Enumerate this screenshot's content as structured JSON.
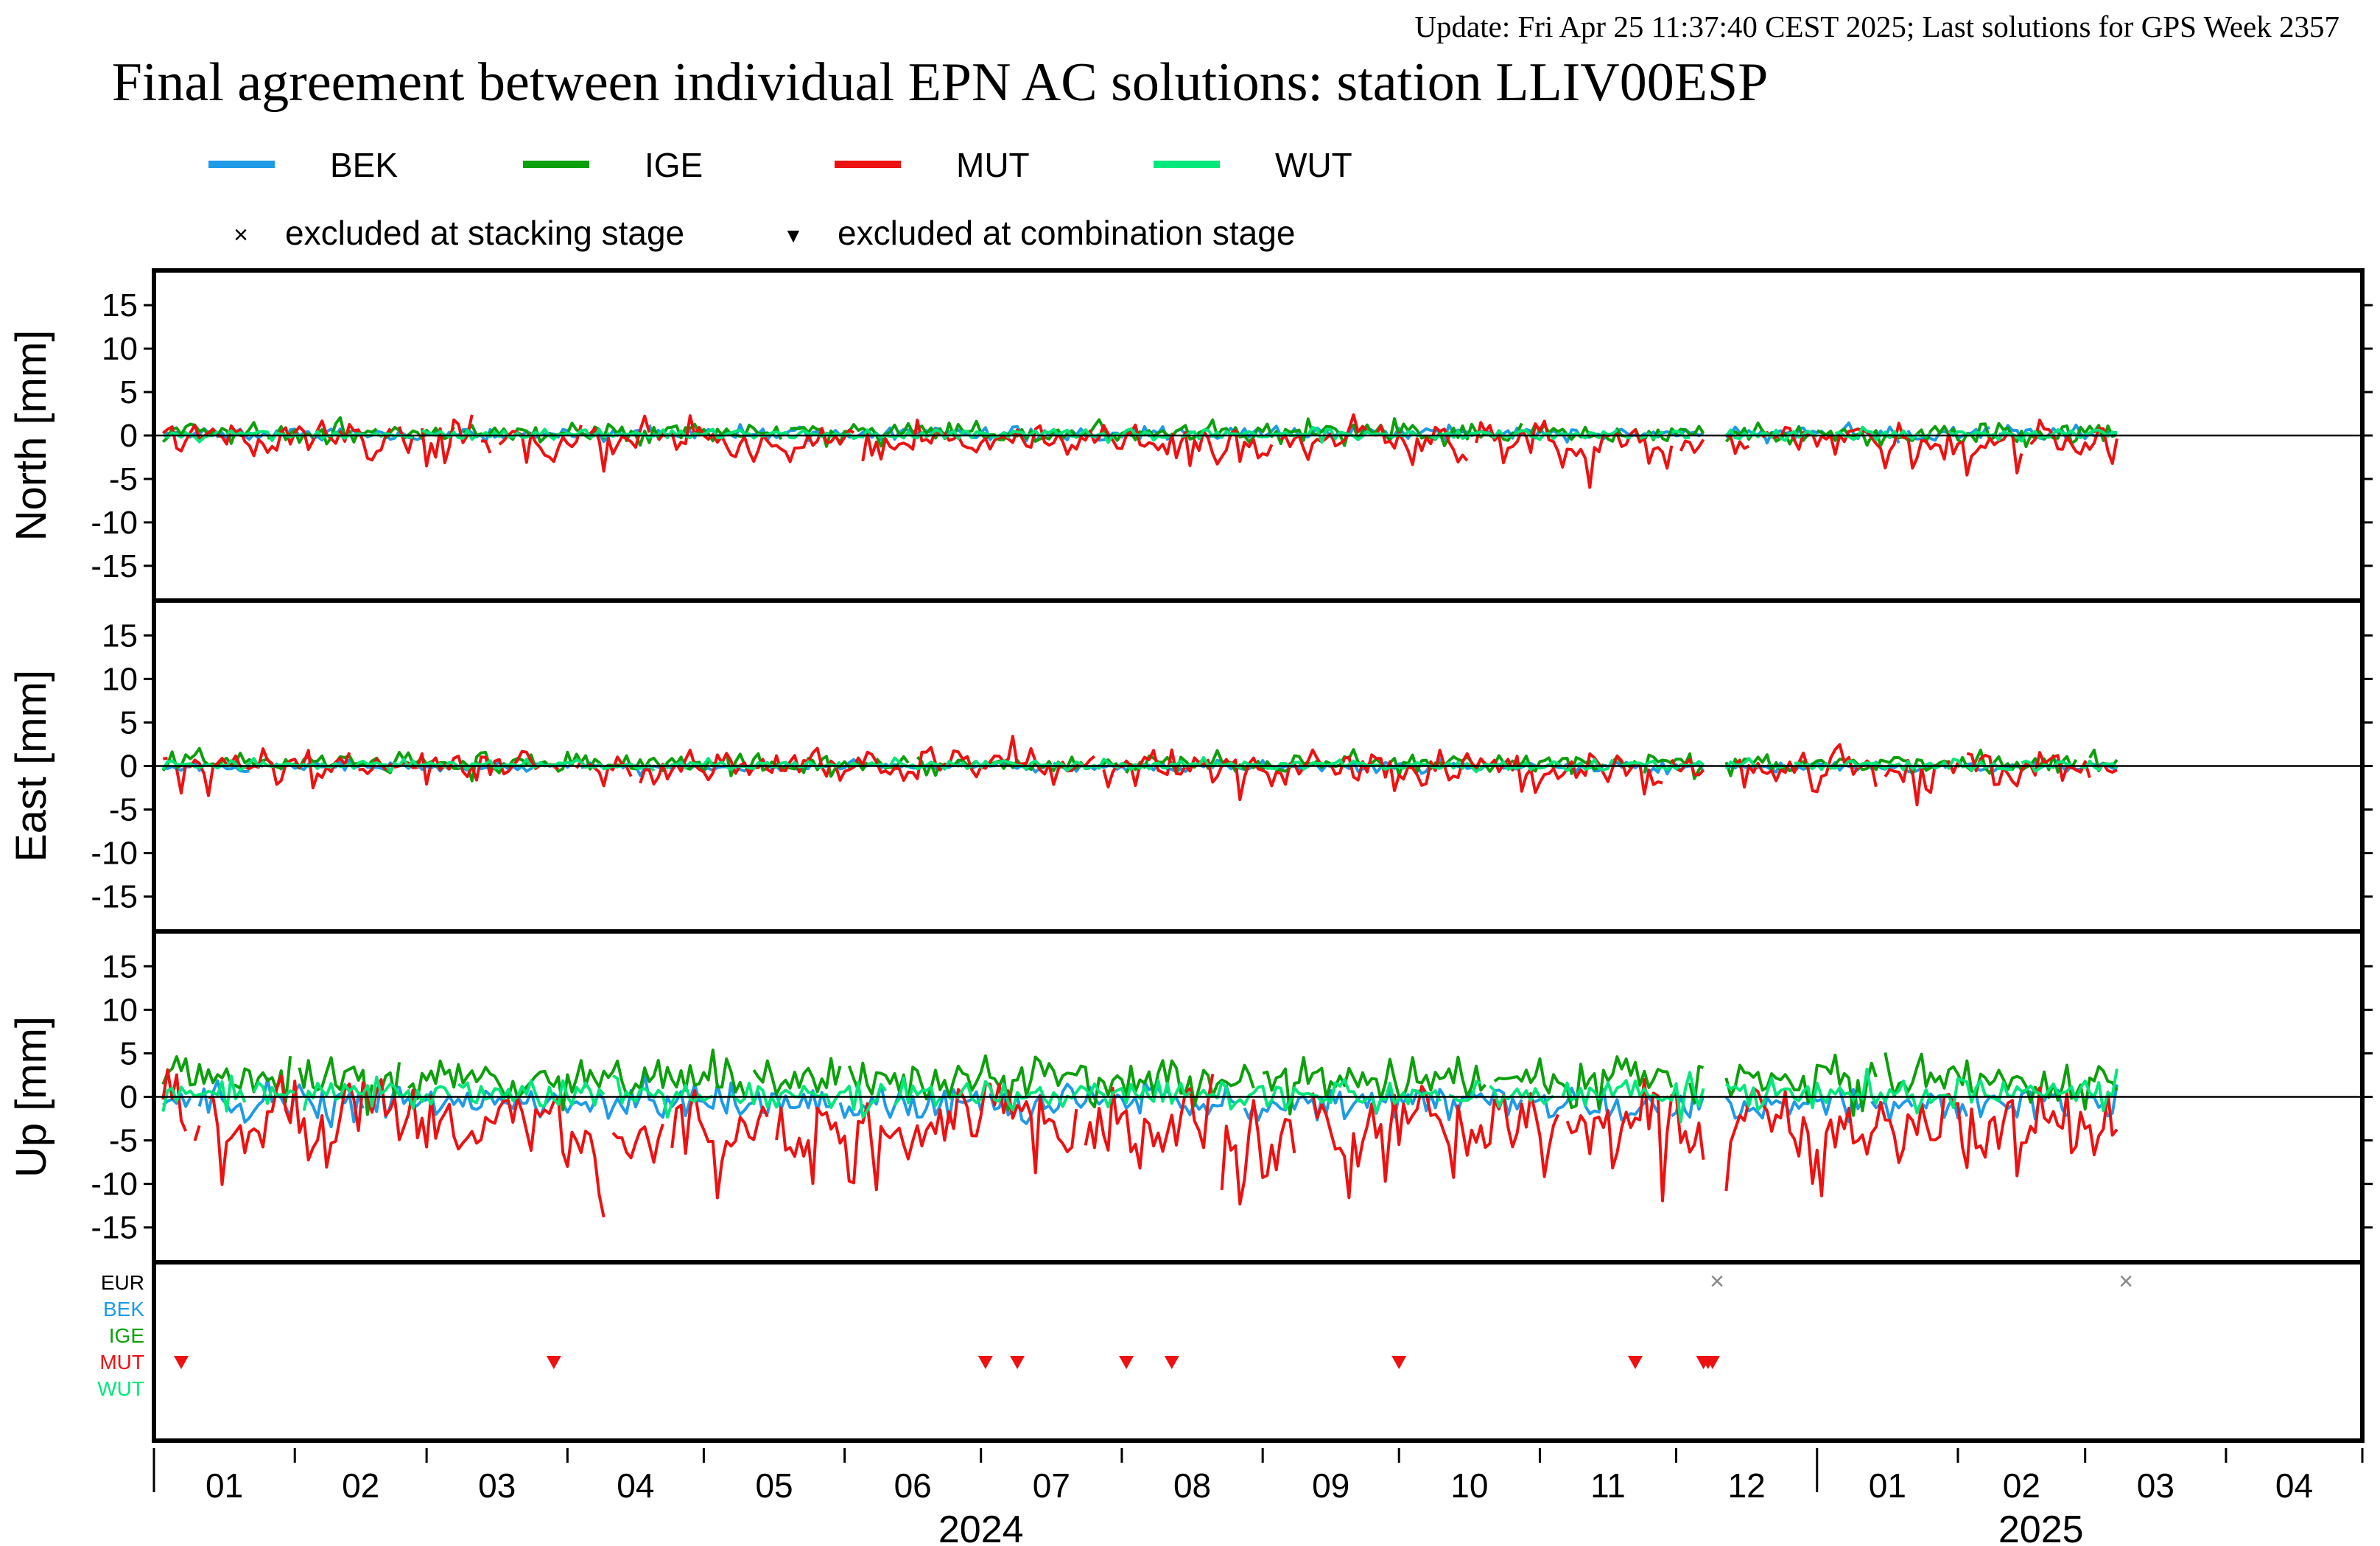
{
  "header": {
    "update_text": "Update: Fri Apr 25 11:37:40 CEST 2025; Last solutions for GPS Week 2357",
    "title": "Final agreement between individual EPN AC solutions: station LLIV00ESP"
  },
  "colors": {
    "BEK": "#1e9be6",
    "IGE": "#0ca00c",
    "MUT": "#ee1111",
    "WUT": "#00e87a",
    "EUR": "#000000",
    "update_text": "#8b1a1a",
    "frame": "#000000"
  },
  "legend": {
    "series": [
      "BEK",
      "IGE",
      "MUT",
      "WUT"
    ],
    "markers": [
      {
        "symbol": "×",
        "label": "excluded at stacking stage"
      },
      {
        "symbol": "▼",
        "label": "excluded at combination stage"
      }
    ]
  },
  "chart_data": {
    "type": "line",
    "x_unit": "month",
    "x_range": [
      "2024-01-01",
      "2025-04-30"
    ],
    "panels": [
      {
        "ylabel": "North [mm]",
        "ylim": [
          -19,
          19
        ],
        "yticks": [
          15,
          10,
          5,
          0,
          -5,
          -10,
          -15
        ],
        "typical_amplitude_mm": {
          "BEK": 0.4,
          "IGE": 0.6,
          "MUT": 1.5,
          "WUT": 0.3
        },
        "series_offset_mm": {
          "BEK": 0.2,
          "IGE": 0.3,
          "MUT": -0.5,
          "WUT": 0.1
        },
        "annotated_extremes_mm": {
          "MUT_max": 3.8,
          "MUT_min": -4.3
        }
      },
      {
        "ylabel": "East [mm]",
        "ylim": [
          -19,
          19
        ],
        "yticks": [
          15,
          10,
          5,
          0,
          -5,
          -10,
          -15
        ],
        "typical_amplitude_mm": {
          "BEK": 0.3,
          "IGE": 0.6,
          "MUT": 1.4,
          "WUT": 0.3
        },
        "series_offset_mm": {
          "BEK": -0.1,
          "IGE": 0.3,
          "MUT": 0.0,
          "WUT": 0.1
        },
        "annotated_extremes_mm": {
          "MUT_max": 4.1,
          "MUT_min": -4.4
        }
      },
      {
        "ylabel": "Up [mm]",
        "ylim": [
          -19,
          19
        ],
        "yticks": [
          15,
          10,
          5,
          0,
          -5,
          -10,
          -15
        ],
        "typical_amplitude_mm": {
          "BEK": 1.0,
          "IGE": 1.3,
          "MUT": 3.5,
          "WUT": 0.9
        },
        "series_offset_mm": {
          "BEK": -0.8,
          "IGE": 2.0,
          "MUT": -3.0,
          "WUT": 0.3
        },
        "annotated_extremes_mm": {
          "MUT_min": -11.0,
          "IGE_max": 6.3
        }
      }
    ],
    "gaps": [
      {
        "start": "2024-12-08",
        "end": "2024-12-11"
      }
    ],
    "exclusions": {
      "rows": [
        "EUR",
        "BEK",
        "IGE",
        "MUT",
        "WUT"
      ],
      "stacking": [
        {
          "ac": "EUR",
          "date": "2024-12-10"
        },
        {
          "ac": "EUR",
          "date": "2025-03-10"
        }
      ],
      "combination": [
        {
          "ac": "MUT",
          "date": "2024-01-07"
        },
        {
          "ac": "MUT",
          "date": "2024-03-29"
        },
        {
          "ac": "MUT",
          "date": "2024-07-02"
        },
        {
          "ac": "MUT",
          "date": "2024-07-09"
        },
        {
          "ac": "MUT",
          "date": "2024-08-02"
        },
        {
          "ac": "MUT",
          "date": "2024-08-12"
        },
        {
          "ac": "MUT",
          "date": "2024-10-01"
        },
        {
          "ac": "MUT",
          "date": "2024-11-22"
        },
        {
          "ac": "MUT",
          "date": "2024-12-07"
        },
        {
          "ac": "MUT",
          "date": "2024-12-08"
        },
        {
          "ac": "MUT",
          "date": "2024-12-09"
        }
      ]
    },
    "xaxis": {
      "months": [
        {
          "label": "01",
          "year": 2024
        },
        {
          "label": "02",
          "year": 2024
        },
        {
          "label": "03",
          "year": 2024
        },
        {
          "label": "04",
          "year": 2024
        },
        {
          "label": "05",
          "year": 2024
        },
        {
          "label": "06",
          "year": 2024
        },
        {
          "label": "07",
          "year": 2024
        },
        {
          "label": "08",
          "year": 2024
        },
        {
          "label": "09",
          "year": 2024
        },
        {
          "label": "10",
          "year": 2024
        },
        {
          "label": "11",
          "year": 2024
        },
        {
          "label": "12",
          "year": 2024
        },
        {
          "label": "01",
          "year": 2025
        },
        {
          "label": "02",
          "year": 2025
        },
        {
          "label": "03",
          "year": 2025
        },
        {
          "label": "04",
          "year": 2025
        }
      ],
      "year_labels": [
        "2024",
        "2025"
      ]
    }
  }
}
